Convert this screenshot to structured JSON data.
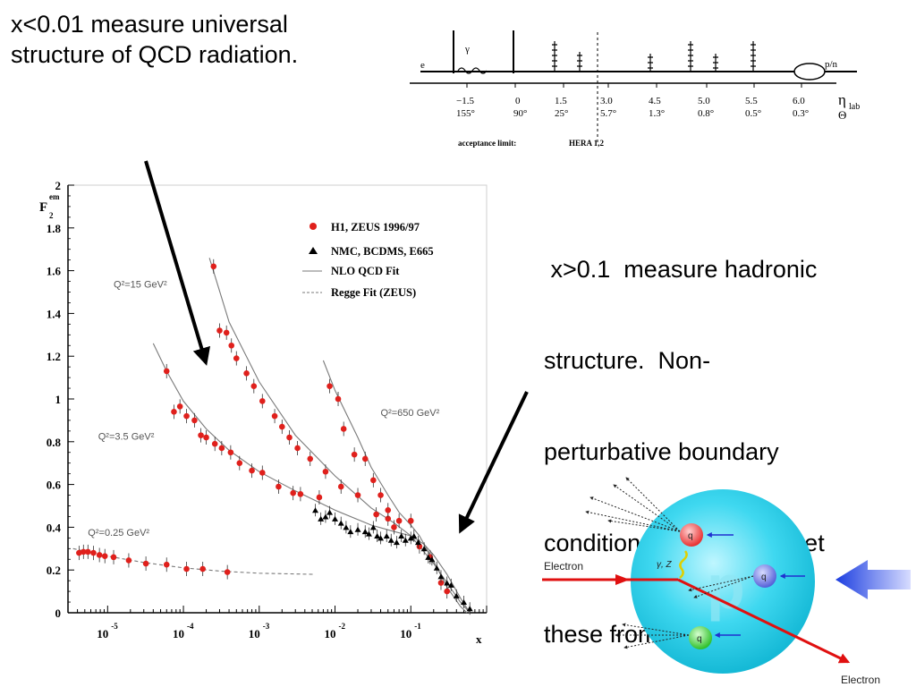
{
  "slide": {
    "left_text": [
      "x<0.01 measure universal",
      "structure of QCD radiation."
    ],
    "right_text": [
      " x>0.1  measure hadronic",
      "structure.  Non-",
      "perturbative boundary",
      "conditions.  Eventually get",
      "these from the lattice ?"
    ]
  },
  "detector": {
    "e_label": "e",
    "gamma_label": "γ",
    "pn_label": "p/n",
    "eta_symbol": "η",
    "eta_sub": "lab",
    "theta_symbol": "Θ",
    "ticks": [
      {
        "eta": "−1.5",
        "theta": "155°"
      },
      {
        "eta": "0",
        "theta": "90°"
      },
      {
        "eta": "1.5",
        "theta": "25°"
      },
      {
        "eta": "3.0",
        "theta": "5.7°"
      },
      {
        "eta": "4.5",
        "theta": "1.3°"
      },
      {
        "eta": "5.0",
        "theta": "0.8°"
      },
      {
        "eta": "5.5",
        "theta": "0.5°"
      },
      {
        "eta": "6.0",
        "theta": "0.3°"
      }
    ],
    "acceptance_label": "acceptance limit:",
    "acceptance_value": "HERA 1,2"
  },
  "chart_data": {
    "type": "scatter",
    "x_scale": "log",
    "xlim": [
      3e-06,
      1
    ],
    "ylim": [
      0,
      2
    ],
    "xlabel": "x",
    "ylabel": "F",
    "ylabel_sup": "em",
    "ylabel_sub": "2",
    "y_ticks": [
      "0",
      "0.2",
      "0.4",
      "0.6",
      "0.8",
      "1",
      "1.2",
      "1.4",
      "1.6",
      "1.8",
      "2"
    ],
    "x_ticks": [
      {
        "base": "10",
        "exp": "-5"
      },
      {
        "base": "10",
        "exp": "-4"
      },
      {
        "base": "10",
        "exp": "-3"
      },
      {
        "base": "10",
        "exp": "-2"
      },
      {
        "base": "10",
        "exp": "-1"
      }
    ],
    "legend": {
      "placement": "top-right",
      "entries": [
        {
          "label": "H1, ZEUS 1996/97",
          "marker": "circle",
          "color": "#e0201c"
        },
        {
          "label": "NMC, BCDMS, E665",
          "marker": "triangle",
          "color": "#000000"
        },
        {
          "label": "NLO QCD Fit",
          "marker": "solid-line",
          "color": "#7a7a7a"
        },
        {
          "label": "Regge Fit (ZEUS)",
          "marker": "dashed-line",
          "color": "#7a7a7a"
        }
      ]
    },
    "annotations": [
      {
        "label": "Q²=15 GeV²",
        "x": 1.2e-05,
        "y": 1.52
      },
      {
        "label": "Q²=3.5 GeV²",
        "x": 7.5e-06,
        "y": 0.81
      },
      {
        "label": "Q²=650 GeV²",
        "x": 0.04,
        "y": 0.92
      },
      {
        "label": "Q²=0.25 GeV²",
        "x": 5.5e-06,
        "y": 0.36
      }
    ],
    "series": [
      {
        "group": "Q²=0.25 GeV²",
        "marker": "circle",
        "points": [
          [
            4.2e-06,
            0.28
          ],
          [
            4.8e-06,
            0.285
          ],
          [
            5.5e-06,
            0.285
          ],
          [
            6.5e-06,
            0.28
          ],
          [
            7.8e-06,
            0.27
          ],
          [
            9.2e-06,
            0.265
          ],
          [
            1.2e-05,
            0.26
          ],
          [
            1.9e-05,
            0.245
          ],
          [
            3.2e-05,
            0.23
          ],
          [
            6e-05,
            0.225
          ],
          [
            0.00011,
            0.205
          ],
          [
            0.00018,
            0.205
          ],
          [
            0.00038,
            0.19
          ]
        ]
      },
      {
        "group": "Q²=3.5 GeV²",
        "marker": "circle",
        "points": [
          [
            6e-05,
            1.13
          ],
          [
            7.5e-05,
            0.94
          ],
          [
            9e-05,
            0.965
          ],
          [
            0.00011,
            0.92
          ],
          [
            0.00014,
            0.9
          ],
          [
            0.00017,
            0.83
          ],
          [
            0.0002,
            0.82
          ],
          [
            0.00026,
            0.79
          ],
          [
            0.00032,
            0.77
          ],
          [
            0.00042,
            0.75
          ],
          [
            0.00055,
            0.7
          ],
          [
            0.0008,
            0.665
          ],
          [
            0.0011,
            0.655
          ],
          [
            0.0018,
            0.59
          ],
          [
            0.0028,
            0.56
          ],
          [
            0.0035,
            0.555
          ],
          [
            0.0062,
            0.54
          ]
        ]
      },
      {
        "group": "Q²=15 GeV²",
        "marker": "circle",
        "points": [
          [
            0.00025,
            1.62
          ],
          [
            0.0003,
            1.32
          ],
          [
            0.00037,
            1.31
          ],
          [
            0.00043,
            1.25
          ],
          [
            0.0005,
            1.19
          ],
          [
            0.00068,
            1.12
          ],
          [
            0.00085,
            1.06
          ],
          [
            0.0011,
            0.99
          ],
          [
            0.0016,
            0.92
          ],
          [
            0.002,
            0.87
          ],
          [
            0.0025,
            0.82
          ],
          [
            0.0032,
            0.77
          ],
          [
            0.0047,
            0.72
          ],
          [
            0.0075,
            0.66
          ],
          [
            0.012,
            0.59
          ],
          [
            0.02,
            0.55
          ],
          [
            0.035,
            0.46
          ],
          [
            0.05,
            0.44
          ],
          [
            0.06,
            0.4
          ]
        ]
      },
      {
        "group": "Q²=650 GeV²",
        "marker": "circle",
        "points": [
          [
            0.0085,
            1.06
          ],
          [
            0.011,
            1.0
          ],
          [
            0.013,
            0.86
          ],
          [
            0.018,
            0.74
          ],
          [
            0.025,
            0.72
          ],
          [
            0.032,
            0.62
          ],
          [
            0.04,
            0.55
          ],
          [
            0.05,
            0.48
          ],
          [
            0.07,
            0.43
          ],
          [
            0.1,
            0.43
          ],
          [
            0.13,
            0.31
          ],
          [
            0.18,
            0.26
          ],
          [
            0.25,
            0.14
          ],
          [
            0.3,
            0.1
          ]
        ]
      },
      {
        "group": "NMC, BCDMS, E665",
        "marker": "triangle",
        "points": [
          [
            0.0055,
            0.48
          ],
          [
            0.0065,
            0.44
          ],
          [
            0.0075,
            0.45
          ],
          [
            0.0085,
            0.47
          ],
          [
            0.01,
            0.44
          ],
          [
            0.012,
            0.42
          ],
          [
            0.014,
            0.4
          ],
          [
            0.016,
            0.38
          ],
          [
            0.02,
            0.39
          ],
          [
            0.025,
            0.38
          ],
          [
            0.028,
            0.37
          ],
          [
            0.032,
            0.4
          ],
          [
            0.036,
            0.36
          ],
          [
            0.04,
            0.35
          ],
          [
            0.048,
            0.36
          ],
          [
            0.055,
            0.34
          ],
          [
            0.065,
            0.33
          ],
          [
            0.075,
            0.36
          ],
          [
            0.085,
            0.34
          ],
          [
            0.1,
            0.35
          ],
          [
            0.11,
            0.36
          ],
          [
            0.125,
            0.33
          ],
          [
            0.15,
            0.3
          ],
          [
            0.17,
            0.26
          ],
          [
            0.19,
            0.25
          ],
          [
            0.22,
            0.21
          ],
          [
            0.25,
            0.17
          ],
          [
            0.3,
            0.14
          ],
          [
            0.34,
            0.13
          ],
          [
            0.4,
            0.08
          ],
          [
            0.5,
            0.05
          ],
          [
            0.6,
            0.02
          ]
        ]
      }
    ],
    "fits": [
      {
        "group": "Q²=0.25 GeV²",
        "style": "dashed",
        "points": [
          [
            3.5e-06,
            0.3
          ],
          [
            1e-05,
            0.265
          ],
          [
            3e-05,
            0.235
          ],
          [
            0.0001,
            0.21
          ],
          [
            0.0003,
            0.195
          ],
          [
            0.001,
            0.185
          ],
          [
            0.005,
            0.18
          ],
          [
            0.0055,
            0.18
          ]
        ]
      },
      {
        "group": "Q²=3.5 GeV²",
        "style": "solid",
        "points": [
          [
            4e-05,
            1.26
          ],
          [
            6e-05,
            1.13
          ],
          [
            0.0001,
            0.99
          ],
          [
            0.0002,
            0.86
          ],
          [
            0.0004,
            0.76
          ],
          [
            0.001,
            0.66
          ],
          [
            0.003,
            0.57
          ],
          [
            0.01,
            0.48
          ],
          [
            0.03,
            0.41
          ],
          [
            0.06,
            0.38
          ],
          [
            0.1,
            0.36
          ],
          [
            0.15,
            0.32
          ],
          [
            0.2,
            0.27
          ],
          [
            0.3,
            0.18
          ],
          [
            0.45,
            0.07
          ],
          [
            0.6,
            0.0
          ]
        ]
      },
      {
        "group": "Q²=15 GeV²",
        "style": "solid",
        "points": [
          [
            0.00022,
            1.66
          ],
          [
            0.0004,
            1.36
          ],
          [
            0.001,
            1.08
          ],
          [
            0.003,
            0.83
          ],
          [
            0.01,
            0.64
          ],
          [
            0.03,
            0.49
          ],
          [
            0.06,
            0.42
          ],
          [
            0.1,
            0.36
          ],
          [
            0.2,
            0.23
          ],
          [
            0.3,
            0.14
          ],
          [
            0.45,
            0.05
          ],
          [
            0.6,
            0.0
          ]
        ]
      },
      {
        "group": "Q²=650 GeV²",
        "style": "solid",
        "points": [
          [
            0.007,
            1.18
          ],
          [
            0.01,
            1.04
          ],
          [
            0.02,
            0.82
          ],
          [
            0.03,
            0.68
          ],
          [
            0.05,
            0.55
          ],
          [
            0.07,
            0.47
          ],
          [
            0.1,
            0.41
          ],
          [
            0.13,
            0.36
          ],
          [
            0.2,
            0.24
          ],
          [
            0.3,
            0.12
          ],
          [
            0.45,
            0.03
          ],
          [
            0.55,
            0.0
          ]
        ]
      }
    ]
  },
  "diagram": {
    "electron_in_label": "Electron",
    "electron_out_label": "Electron",
    "boson_label": "γ, Z",
    "proton_label": "p",
    "quark_labels": [
      "q",
      "q",
      "q"
    ]
  }
}
